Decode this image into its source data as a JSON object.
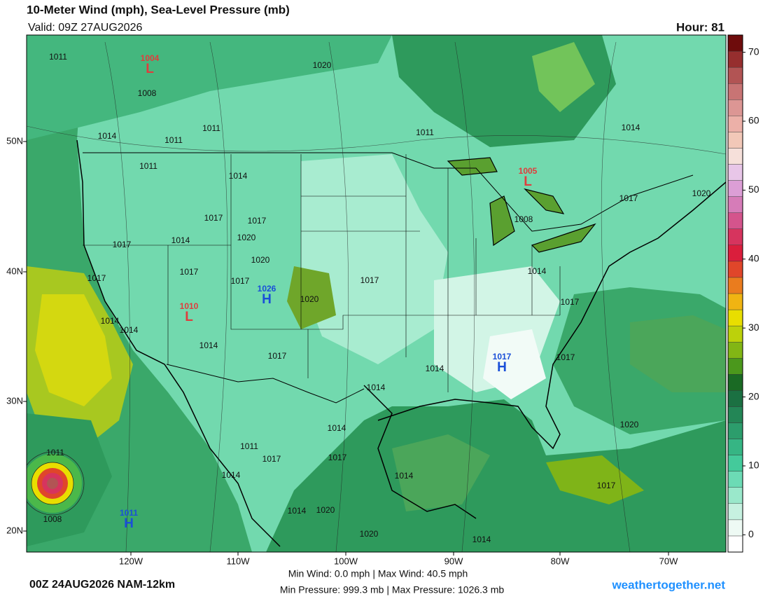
{
  "header": {
    "title": "10-Meter Wind (mph), Sea-Level Pressure (mb)",
    "valid": "Valid: 09Z 27AUG2026",
    "hour": "Hour: 81"
  },
  "map": {
    "lat_labels": [
      "50N",
      "40N",
      "30N",
      "20N"
    ],
    "lon_labels": [
      "120W",
      "110W",
      "100W",
      "90W",
      "80W",
      "70W"
    ],
    "highs": [
      {
        "symbol": "H",
        "pressure": 1026
      },
      {
        "symbol": "H",
        "pressure": 1017
      },
      {
        "symbol": "H",
        "pressure": 1011
      }
    ],
    "lows": [
      {
        "symbol": "L",
        "pressure": 1004
      },
      {
        "symbol": "L",
        "pressure": 1005
      },
      {
        "symbol": "L",
        "pressure": 1010
      }
    ],
    "isobar_labels": [
      1011,
      1008,
      1014,
      1011,
      1011,
      1011,
      1014,
      1017,
      1017,
      1020,
      1014,
      1017,
      1017,
      1017,
      1020,
      1017,
      1014,
      1014,
      1014,
      1017,
      1017,
      1014,
      1014,
      1014,
      1017,
      1017,
      1017,
      1020,
      1020,
      1017,
      1014,
      1014,
      1017,
      1017,
      1011,
      1014,
      1014,
      1020,
      1020,
      1014,
      1020,
      1011,
      1014,
      1008,
      1011,
      1008,
      1020
    ]
  },
  "colorbar": {
    "lim": [
      -2.5,
      72.5
    ],
    "ticks": [
      0,
      10,
      20,
      30,
      40,
      50,
      60,
      70
    ],
    "colors": [
      "#ffffff",
      "#eefaf4",
      "#c6f1e0",
      "#9ae8cb",
      "#6cdbb5",
      "#44ca9b",
      "#36b584",
      "#2c9d6c",
      "#238656",
      "#1b7042",
      "#1a6a24",
      "#4b981c",
      "#82b615",
      "#bcd10b",
      "#e8de00",
      "#f0b412",
      "#ea7c1e",
      "#e0462a",
      "#da1e3c",
      "#d6345e",
      "#d4548c",
      "#d67cb8",
      "#dc9ed6",
      "#e8c6e8",
      "#f6e0da",
      "#f2c8b8",
      "#ecb0a8",
      "#dc9694",
      "#c87474",
      "#b25454",
      "#962e2e",
      "#6e0c0c"
    ]
  },
  "footer": {
    "run": "00Z 24AUG2026 NAM-12km",
    "wind": "Min Wind:  0.0 mph | Max Wind: 40.5 mph",
    "pressure": "Min Pressure: 999.3 mb | Max Pressure: 1026.3 mb",
    "site": "weathertogether.net"
  }
}
